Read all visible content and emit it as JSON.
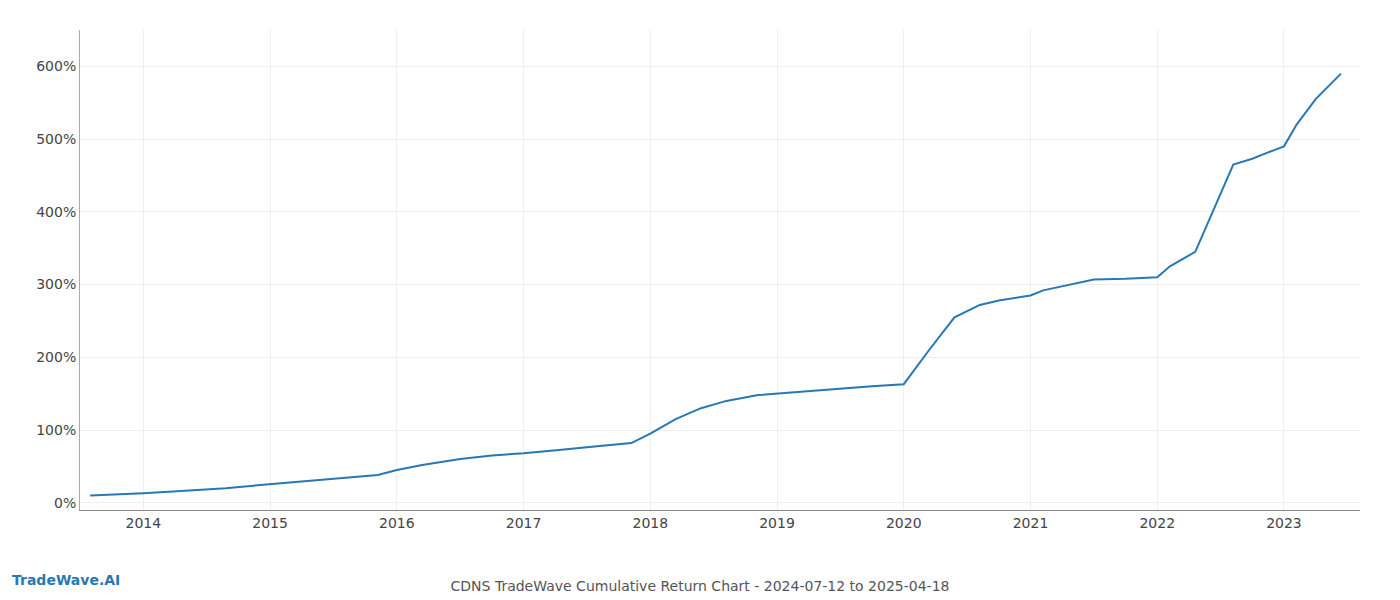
{
  "chart_data": {
    "type": "line",
    "title": "CDNS TradeWave Cumulative Return Chart - 2024-07-12 to 2025-04-18",
    "annotations": [
      {
        "text": "TradeWave.AI"
      }
    ],
    "color": "#2878b5",
    "x": [
      2013.58,
      2013.75,
      2014.0,
      2014.2,
      2014.4,
      2014.65,
      2014.9,
      2015.1,
      2015.3,
      2015.6,
      2015.85,
      2016.0,
      2016.2,
      2016.5,
      2016.75,
      2017.0,
      2017.1,
      2017.3,
      2017.6,
      2017.85,
      2018.0,
      2018.2,
      2018.4,
      2018.6,
      2018.85,
      2019.0,
      2019.1,
      2019.3,
      2019.5,
      2019.75,
      2020.0,
      2020.2,
      2020.4,
      2020.6,
      2020.75,
      2021.0,
      2021.1,
      2021.3,
      2021.5,
      2021.75,
      2022.0,
      2022.1,
      2022.3,
      2022.6,
      2022.75,
      2022.85,
      2023.0,
      2023.1,
      2023.25,
      2023.45
    ],
    "values": [
      10,
      11,
      13,
      15,
      17,
      20,
      24,
      27,
      30,
      34,
      38,
      45,
      52,
      60,
      65,
      68,
      70,
      73,
      78,
      82,
      95,
      115,
      130,
      140,
      148,
      150,
      152,
      155,
      157,
      160,
      163,
      210,
      255,
      272,
      278,
      285,
      292,
      300,
      307,
      308,
      310,
      325,
      345,
      465,
      473,
      480,
      490,
      520,
      555,
      590
    ],
    "xlim": [
      2013.5,
      2023.6
    ],
    "xticks": [
      2014,
      2015,
      2016,
      2017,
      2018,
      2019,
      2020,
      2021,
      2022,
      2023
    ],
    "ylim": [
      -10,
      650
    ],
    "yticks": [
      {
        "value": 0,
        "label": "0%"
      },
      {
        "value": 100,
        "label": "100%"
      },
      {
        "value": 200,
        "label": "200%"
      },
      {
        "value": 300,
        "label": "300%"
      },
      {
        "value": 400,
        "label": "400%"
      },
      {
        "value": 500,
        "label": "500%"
      },
      {
        "value": 600,
        "label": "600%"
      }
    ],
    "grid": true
  }
}
